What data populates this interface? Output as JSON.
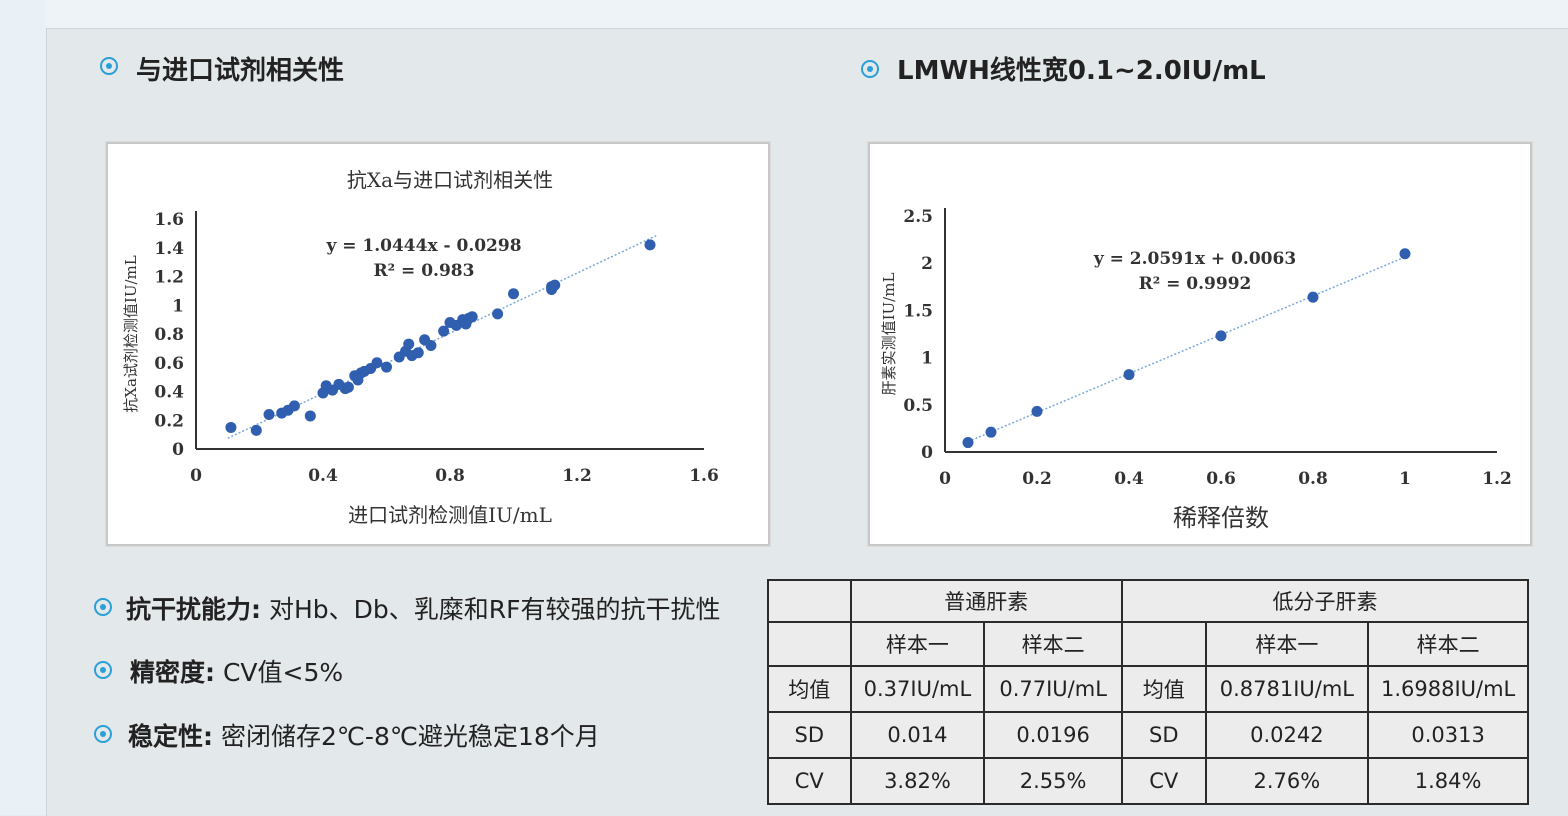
{
  "sections": {
    "correlation_heading": "与进口试剂相关性",
    "linearity_heading": "LMWH线性宽0.1~2.0IU/mL"
  },
  "features": [
    {
      "label": "抗干扰能力:",
      "text": " 对Hb、Db、乳糜和RF有较强的抗干扰性"
    },
    {
      "label": "精密度:",
      "text": " CV值<5%"
    },
    {
      "label": "稳定性:",
      "text": " 密闭储存2℃-8℃避光稳定18个月"
    }
  ],
  "chart_data": [
    {
      "type": "scatter",
      "title": "抗Xa与进口试剂相关性",
      "xlabel": "进口试剂检测值IU/mL",
      "ylabel": "抗Xa试剂检测值IU/mL",
      "xlim": [
        0,
        1.6
      ],
      "ylim": [
        0,
        1.6
      ],
      "xticks": [
        "0",
        "0.4",
        "0.8",
        "1.2",
        "1.6"
      ],
      "yticks": [
        "0",
        "0.2",
        "0.4",
        "0.6",
        "0.8",
        "1",
        "1.2",
        "1.4",
        "1.6"
      ],
      "equation": "y = 1.0444x - 0.0298",
      "r2": "R² = 0.983",
      "trendline": {
        "slope": 1.0444,
        "intercept": -0.0298
      },
      "grid": false,
      "color": "#2f5fae",
      "x": [
        0.11,
        0.19,
        0.23,
        0.27,
        0.29,
        0.31,
        0.36,
        0.4,
        0.41,
        0.43,
        0.45,
        0.47,
        0.48,
        0.5,
        0.51,
        0.52,
        0.53,
        0.55,
        0.57,
        0.6,
        0.64,
        0.66,
        0.67,
        0.68,
        0.7,
        0.72,
        0.74,
        0.78,
        0.8,
        0.82,
        0.84,
        0.85,
        0.86,
        0.87,
        0.95,
        1.0,
        1.12,
        1.12,
        1.13,
        1.43
      ],
      "y": [
        0.15,
        0.13,
        0.24,
        0.25,
        0.27,
        0.3,
        0.23,
        0.39,
        0.44,
        0.41,
        0.45,
        0.42,
        0.43,
        0.51,
        0.48,
        0.53,
        0.54,
        0.56,
        0.6,
        0.57,
        0.64,
        0.68,
        0.73,
        0.65,
        0.67,
        0.76,
        0.72,
        0.82,
        0.88,
        0.86,
        0.9,
        0.87,
        0.91,
        0.92,
        0.94,
        1.08,
        1.11,
        1.13,
        1.14,
        1.42
      ]
    },
    {
      "type": "scatter",
      "title": "",
      "xlabel": "稀释倍数",
      "ylabel": "肝素实测值IU/mL",
      "xlim": [
        0,
        1.2
      ],
      "ylim": [
        0,
        2.5
      ],
      "xticks": [
        "0",
        "0.2",
        "0.4",
        "0.6",
        "0.8",
        "1",
        "1.2"
      ],
      "yticks": [
        "0",
        "0.5",
        "1",
        "1.5",
        "2",
        "2.5"
      ],
      "equation": "y = 2.0591x + 0.0063",
      "r2": "R² = 0.9992",
      "trendline": {
        "slope": 2.0591,
        "intercept": 0.0063
      },
      "grid": false,
      "color": "#2f5fae",
      "x": [
        0.05,
        0.1,
        0.2,
        0.4,
        0.6,
        0.8,
        1.0
      ],
      "y": [
        0.1,
        0.21,
        0.43,
        0.82,
        1.23,
        1.64,
        2.1
      ]
    }
  ],
  "stats_table": {
    "groups": [
      "普通肝素",
      "低分子肝素"
    ],
    "sample_headers": [
      "样本一",
      "样本二",
      "样本一",
      "样本二"
    ],
    "rows": [
      {
        "label_a": "均值",
        "v1": "0.37IU/mL",
        "v2": "0.77IU/mL",
        "label_b": "均值",
        "v3": "0.8781IU/mL",
        "v4": "1.6988IU/mL"
      },
      {
        "label_a": "SD",
        "v1": "0.014",
        "v2": "0.0196",
        "label_b": "SD",
        "v3": "0.0242",
        "v4": "0.0313"
      },
      {
        "label_a": "CV",
        "v1": "3.82%",
        "v2": "2.55%",
        "label_b": "CV",
        "v3": "2.76%",
        "v4": "1.84%"
      }
    ]
  }
}
